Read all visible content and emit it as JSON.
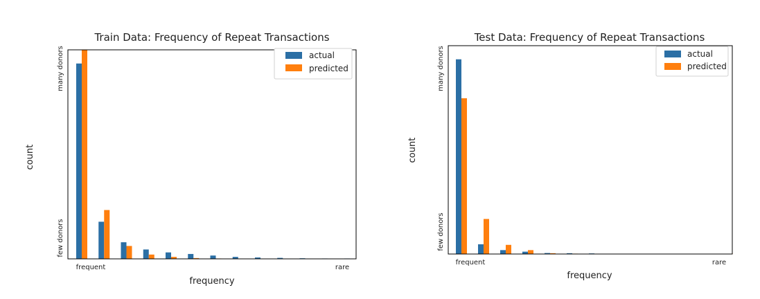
{
  "colors": {
    "actual": "#2b6fa5",
    "predicted": "#ff7f0e"
  },
  "chart_data": [
    {
      "type": "bar",
      "title": "Train Data: Frequency of Repeat Transactions",
      "xlabel": "frequency",
      "ylabel": "count",
      "x_ticks": {
        "first": "frequent",
        "last": "rare"
      },
      "y_ticks": {
        "high": "many donors",
        "low": "few donors"
      },
      "ylim": [
        0,
        1.07
      ],
      "legend": "top-right",
      "series": [
        {
          "name": "actual",
          "values": [
            1.0,
            0.19,
            0.085,
            0.048,
            0.033,
            0.025,
            0.017,
            0.01,
            0.007,
            0.005,
            0.003,
            0.002,
            0.002
          ]
        },
        {
          "name": "predicted",
          "values": [
            1.08,
            0.25,
            0.066,
            0.022,
            0.01,
            0.004,
            0.002,
            0.001,
            0.0005,
            0.0005,
            0.0005,
            0.0005,
            0.0005
          ]
        }
      ]
    },
    {
      "type": "bar",
      "title": "Test Data: Frequency of Repeat Transactions",
      "xlabel": "frequency",
      "ylabel": "count",
      "x_ticks": {
        "first": "frequent",
        "last": "rare"
      },
      "y_ticks": {
        "high": "many donors",
        "low": "few donors"
      },
      "ylim": [
        0,
        1.07
      ],
      "legend": "top-right",
      "series": [
        {
          "name": "actual",
          "values": [
            1.0,
            0.05,
            0.02,
            0.012,
            0.005,
            0.004,
            0.003,
            0.001,
            0.001,
            0.001,
            0.001,
            0.001,
            0.001
          ]
        },
        {
          "name": "predicted",
          "values": [
            0.8,
            0.18,
            0.047,
            0.02,
            0.004,
            0.002,
            0.001,
            0.001,
            0.001,
            0.001,
            0.001,
            0.001,
            0.001
          ]
        }
      ]
    }
  ]
}
